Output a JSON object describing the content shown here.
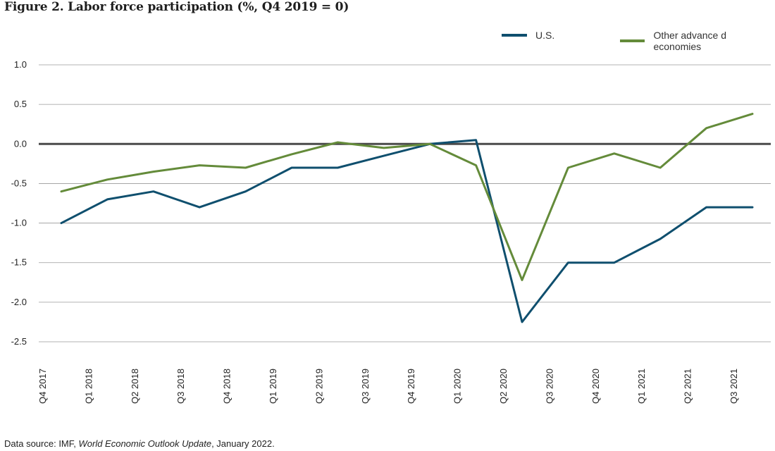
{
  "title": "Figure 2. Labor force participation (%, Q4 2019 = 0)",
  "source": {
    "prefix": "Data source: IMF, ",
    "publication": "World Economic Outlook Update",
    "suffix": ", January 2022."
  },
  "colors": {
    "us": "#0f4f6e",
    "other": "#648b3a",
    "grid": "#9a9a9a",
    "zero_line": "#4a4a4a"
  },
  "chart_data": {
    "type": "line",
    "title": "Figure 2. Labor force participation (%, Q4 2019 = 0)",
    "xlabel": "",
    "ylabel": "",
    "categories": [
      "Q4 2017",
      "Q1 2018",
      "Q2 2018",
      "Q3 2018",
      "Q4 2018",
      "Q1 2019",
      "Q2 2019",
      "Q3 2019",
      "Q4 2019",
      "Q1 2020",
      "Q2 2020",
      "Q3 2020",
      "Q4 2020",
      "Q1 2021",
      "Q2 2021",
      "Q3 2021"
    ],
    "y_ticks": [
      "1.0",
      "0.5",
      "0.0",
      "-0.5",
      "-1.0",
      "-1.5",
      "-2.0",
      "-2.5"
    ],
    "ylim": [
      -2.5,
      1.0
    ],
    "grid": "horizontal",
    "legend_position": "top-right",
    "series": [
      {
        "name": "U.S.",
        "color": "#0f4f6e",
        "values": [
          -1.0,
          -0.7,
          -0.6,
          -0.8,
          -0.6,
          -0.3,
          -0.3,
          -0.15,
          0.0,
          0.05,
          -2.25,
          -1.5,
          -1.5,
          -1.2,
          -0.8,
          -0.8
        ]
      },
      {
        "name": "Other advance d economies",
        "color": "#648b3a",
        "values": [
          -0.6,
          -0.45,
          -0.35,
          -0.27,
          -0.3,
          -0.13,
          0.02,
          -0.05,
          0.0,
          -0.27,
          -1.72,
          -0.3,
          -0.12,
          -0.3,
          0.2,
          0.38
        ]
      }
    ]
  }
}
